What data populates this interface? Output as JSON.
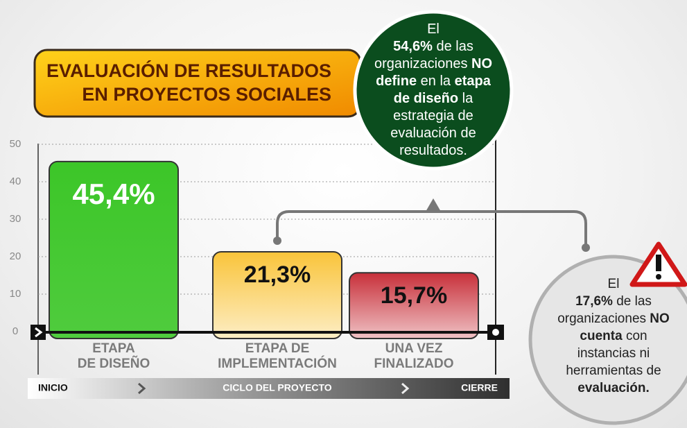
{
  "chart_data": {
    "type": "bar",
    "title": [
      "EVALUACIÓN DE RESULTADOS",
      "EN PROYECTOS SOCIALES"
    ],
    "categories": [
      [
        "ETAPA",
        "DE DISEÑO"
      ],
      [
        "ETAPA DE",
        "IMPLEMENTACIÓN"
      ],
      [
        "UNA VEZ",
        "FINALIZADO"
      ]
    ],
    "values": [
      45.4,
      21.3,
      15.7
    ],
    "value_labels": [
      "45,4%",
      "21,3%",
      "15,7%"
    ],
    "colors": [
      "#3cc628",
      "#f9c43a",
      "#c8303a"
    ],
    "ylim": [
      0,
      50
    ],
    "yticks": [
      0,
      10,
      20,
      30,
      40,
      50
    ],
    "grid": true,
    "callouts": [
      [
        {
          "text": "El"
        },
        {
          "text": "54,6%",
          "bold": true
        },
        {
          "text": "de las organizaciones"
        },
        {
          "text": "NO define",
          "bold": true
        },
        {
          "text": "en la"
        },
        {
          "text": "etapa de diseño",
          "bold": true
        },
        {
          "text": "la estrategia de evaluación de resultados."
        }
      ],
      [
        {
          "text": "El"
        },
        {
          "text": "17,6%",
          "bold": true
        },
        {
          "text": "de las organizaciones"
        },
        {
          "text": "NO cuenta",
          "bold": true
        },
        {
          "text": "con instancias ni herramientas de"
        },
        {
          "text": "evaluación.",
          "bold": true
        }
      ]
    ],
    "timeline": [
      "INICIO",
      "CICLO DEL PROYECTO",
      "CIERRE"
    ]
  }
}
